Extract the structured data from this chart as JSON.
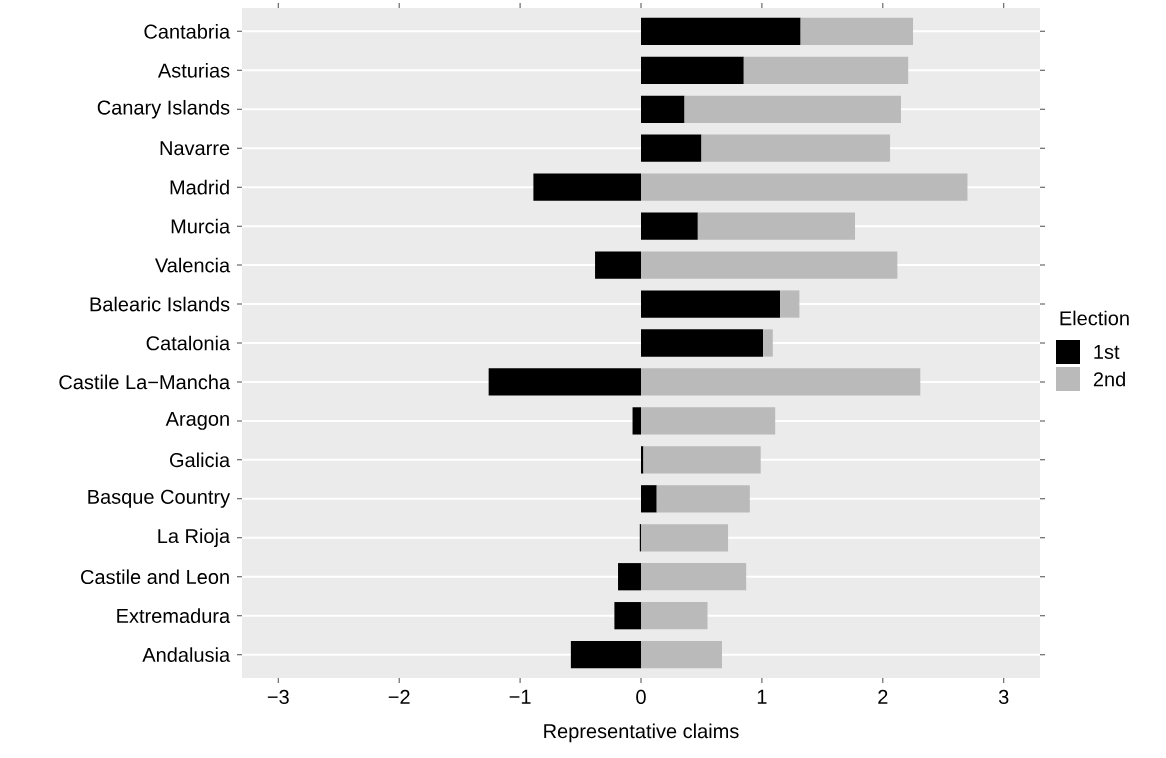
{
  "chart_data": {
    "type": "bar",
    "orientation": "horizontal",
    "stacked": true,
    "xlabel": "Representative claims",
    "legend_title": "Election",
    "legend": "right",
    "grid": "y",
    "categories": [
      "Cantabria",
      "Asturias",
      "Canary Islands",
      "Navarre",
      "Madrid",
      "Murcia",
      "Valencia",
      "Balearic Islands",
      "Catalonia",
      "Castile La−Mancha",
      "Aragon",
      "Galicia",
      "Basque Country",
      "La Rioja",
      "Castile and Leon",
      "Extremadura",
      "Andalusia"
    ],
    "series": [
      {
        "name": "1st",
        "color": "#000000",
        "values": [
          1.32,
          0.85,
          0.36,
          0.5,
          -0.89,
          0.47,
          -0.38,
          1.15,
          1.01,
          -1.26,
          -0.07,
          0.02,
          0.13,
          -0.01,
          -0.19,
          -0.22,
          -0.58
        ]
      },
      {
        "name": "2nd",
        "color": "#bababa",
        "values": [
          0.93,
          1.36,
          1.79,
          1.56,
          2.7,
          1.3,
          2.12,
          0.16,
          0.08,
          2.31,
          1.11,
          0.97,
          0.77,
          0.72,
          0.87,
          0.55,
          0.67
        ]
      }
    ],
    "xlim": [
      -3.3,
      3.3
    ],
    "xticks": [
      {
        "value": -3,
        "label": "−3"
      },
      {
        "value": -2,
        "label": "−2"
      },
      {
        "value": -1,
        "label": "−1"
      },
      0,
      1,
      2,
      3
    ]
  }
}
